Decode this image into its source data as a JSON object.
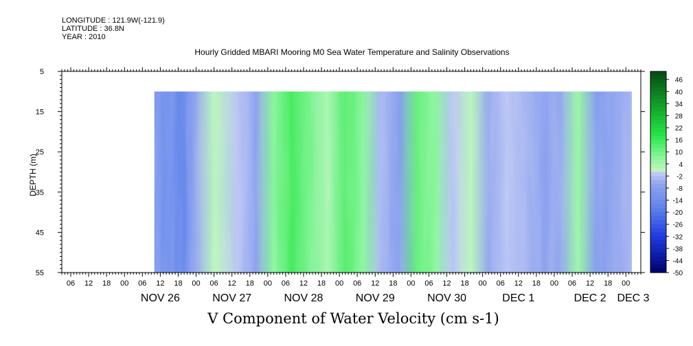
{
  "header": {
    "longitude": "LONGITUDE : 121.9W(-121.9)",
    "latitude": "LATITUDE : 36.8N",
    "year": "YEAR : 2010",
    "title": "Hourly Gridded MBARI Mooring M0 Sea Water Temperature and Salinity Observations"
  },
  "chart_data": {
    "type": "heatmap",
    "title": "Hourly Gridded MBARI Mooring M0 Sea Water Temperature and Salinity Observations",
    "xlabel": "V Component of Water Velocity (cm s-1)",
    "ylabel": "DEPTH (m)",
    "ylim": [
      55,
      5
    ],
    "y_ticks": [
      5,
      15,
      25,
      35,
      45,
      55
    ],
    "data_depth_range": [
      10,
      55
    ],
    "x_hour_ticks": [
      "06",
      "12",
      "18",
      "00",
      "06",
      "12",
      "18",
      "00",
      "06",
      "12",
      "18",
      "00",
      "06",
      "12",
      "18",
      "00",
      "06",
      "12",
      "18",
      "00",
      "06",
      "12",
      "18",
      "00",
      "06",
      "12",
      "18",
      "00",
      "06",
      "12",
      "18",
      "00",
      "06",
      "12",
      "18",
      "00"
    ],
    "x_day_labels": [
      "NOV 26",
      "NOV 27",
      "NOV 28",
      "NOV 29",
      "NOV 30",
      "DEC  1",
      "DEC  2",
      "DEC  3"
    ],
    "colorbar": {
      "min": -50,
      "max": 50,
      "step": 2,
      "tick_labels": [
        "46",
        "40",
        "34",
        "28",
        "22",
        "16",
        "10",
        "4",
        "-2",
        "-8",
        "-14",
        "-20",
        "-26",
        "-32",
        "-38",
        "-44",
        "-50"
      ]
    },
    "time_axis": {
      "start": "2010-11-25T03:00",
      "end": "2010-12-03T05:00",
      "data_start": "2010-11-26T10:00",
      "data_end": "2010-12-03T02:00"
    },
    "approx_v_by_time": {
      "hours": [
        "2010-11-26T10:00",
        "2010-11-26T20:00",
        "2010-11-27T00:00",
        "2010-11-27T06:00",
        "2010-11-27T14:00",
        "2010-11-27T20:00",
        "2010-11-28T02:00",
        "2010-11-28T08:00",
        "2010-11-28T14:00",
        "2010-11-28T20:00",
        "2010-11-29T02:00",
        "2010-11-29T08:00",
        "2010-11-29T14:00",
        "2010-11-29T20:00",
        "2010-11-30T02:00",
        "2010-11-30T08:00",
        "2010-11-30T14:00",
        "2010-11-30T20:00",
        "2010-12-01T02:00",
        "2010-12-01T08:00",
        "2010-12-01T14:00",
        "2010-12-01T20:00",
        "2010-12-02T02:00",
        "2010-12-02T08:00",
        "2010-12-02T14:00",
        "2010-12-02T20:00",
        "2010-12-03T02:00"
      ],
      "v_cm_s": [
        -12,
        -18,
        -6,
        2,
        -2,
        -8,
        8,
        16,
        10,
        4,
        14,
        8,
        -4,
        -10,
        12,
        8,
        -2,
        2,
        -6,
        -2,
        -4,
        -8,
        -6,
        6,
        -10,
        -8,
        -4
      ]
    }
  }
}
